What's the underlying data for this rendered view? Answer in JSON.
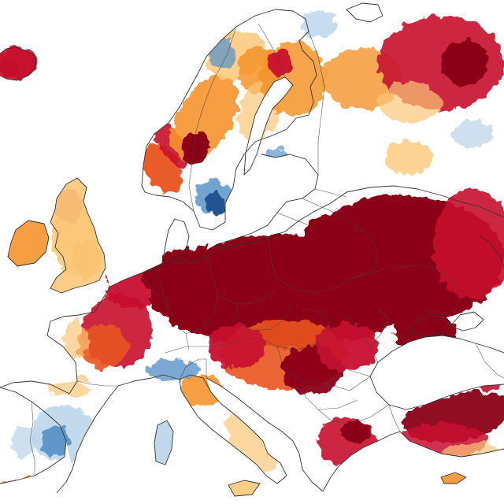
{
  "map": {
    "palette": {
      "extreme_dry": "#8b0016",
      "very_dry": "#c8102e",
      "dry": "#e8531f",
      "moderately_dry": "#f5942c",
      "slightly_dry": "#fbc878",
      "near_normal": "#ffffff",
      "slightly_wet": "#b9d3ea",
      "wet": "#5b94c8",
      "very_wet": "#1d4f8f"
    },
    "background": "#ffffff",
    "coastline_color": "#333333"
  }
}
